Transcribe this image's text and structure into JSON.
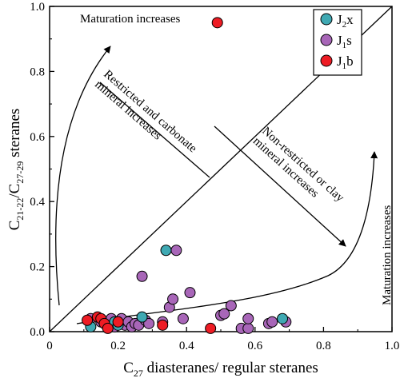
{
  "chart_data": {
    "type": "scatter",
    "xlabel": {
      "main": "C",
      "sub": "27",
      "rest": " diasteranes/ regular steranes"
    },
    "ylabel": {
      "main1": "C",
      "sub1": "21-22",
      "mid": "/C",
      "sub2": "27-29",
      "rest": " steranes"
    },
    "xlim": [
      0,
      1
    ],
    "ylim": [
      0,
      1
    ],
    "xticks": [
      "0",
      "0.2",
      "0.4",
      "0.6",
      "0.8",
      "1.0"
    ],
    "yticks": [
      "0.0",
      "0.2",
      "0.4",
      "0.6",
      "0.8",
      "1.0"
    ],
    "grid": false,
    "legend_position": "top-right",
    "colors": {
      "J2x": "#3fa9b3",
      "J1s": "#a866b8",
      "J1b": "#ee1c24"
    },
    "series": [
      {
        "key": "J2x",
        "legend": {
          "main": "J",
          "sub": "2",
          "rest": "x"
        },
        "points": [
          [
            0.12,
            0.015
          ],
          [
            0.19,
            0.03
          ],
          [
            0.2,
            0.02
          ],
          [
            0.27,
            0.045
          ],
          [
            0.34,
            0.25
          ],
          [
            0.68,
            0.04
          ]
        ]
      },
      {
        "key": "J1s",
        "legend": {
          "main": "J",
          "sub": "1",
          "rest": "s"
        },
        "points": [
          [
            0.12,
            0.04
          ],
          [
            0.15,
            0.03
          ],
          [
            0.16,
            0.025
          ],
          [
            0.18,
            0.04
          ],
          [
            0.19,
            0.015
          ],
          [
            0.21,
            0.04
          ],
          [
            0.22,
            0.02
          ],
          [
            0.23,
            0.03
          ],
          [
            0.24,
            0.015
          ],
          [
            0.25,
            0.025
          ],
          [
            0.26,
            0.02
          ],
          [
            0.27,
            0.17
          ],
          [
            0.28,
            0.035
          ],
          [
            0.29,
            0.025
          ],
          [
            0.33,
            0.03
          ],
          [
            0.35,
            0.075
          ],
          [
            0.36,
            0.1
          ],
          [
            0.37,
            0.25
          ],
          [
            0.39,
            0.04
          ],
          [
            0.41,
            0.12
          ],
          [
            0.5,
            0.05
          ],
          [
            0.51,
            0.055
          ],
          [
            0.53,
            0.08
          ],
          [
            0.56,
            0.01
          ],
          [
            0.58,
            0.01
          ],
          [
            0.58,
            0.04
          ],
          [
            0.64,
            0.025
          ],
          [
            0.65,
            0.03
          ],
          [
            0.69,
            0.03
          ]
        ]
      },
      {
        "key": "J1b",
        "legend": {
          "main": "J",
          "sub": "1",
          "rest": "b"
        },
        "points": [
          [
            0.49,
            0.95
          ],
          [
            0.11,
            0.035
          ],
          [
            0.14,
            0.045
          ],
          [
            0.15,
            0.04
          ],
          [
            0.16,
            0.025
          ],
          [
            0.17,
            0.01
          ],
          [
            0.2,
            0.03
          ],
          [
            0.33,
            0.02
          ],
          [
            0.47,
            0.01
          ]
        ]
      }
    ],
    "annotations": {
      "top": "Maturation increases",
      "right": "Maturation increases",
      "restricted": [
        "Restricted and carbonate",
        "mineral increases"
      ],
      "nonrestricted": [
        "Non-restricted or clay",
        "mineral increases"
      ]
    }
  }
}
